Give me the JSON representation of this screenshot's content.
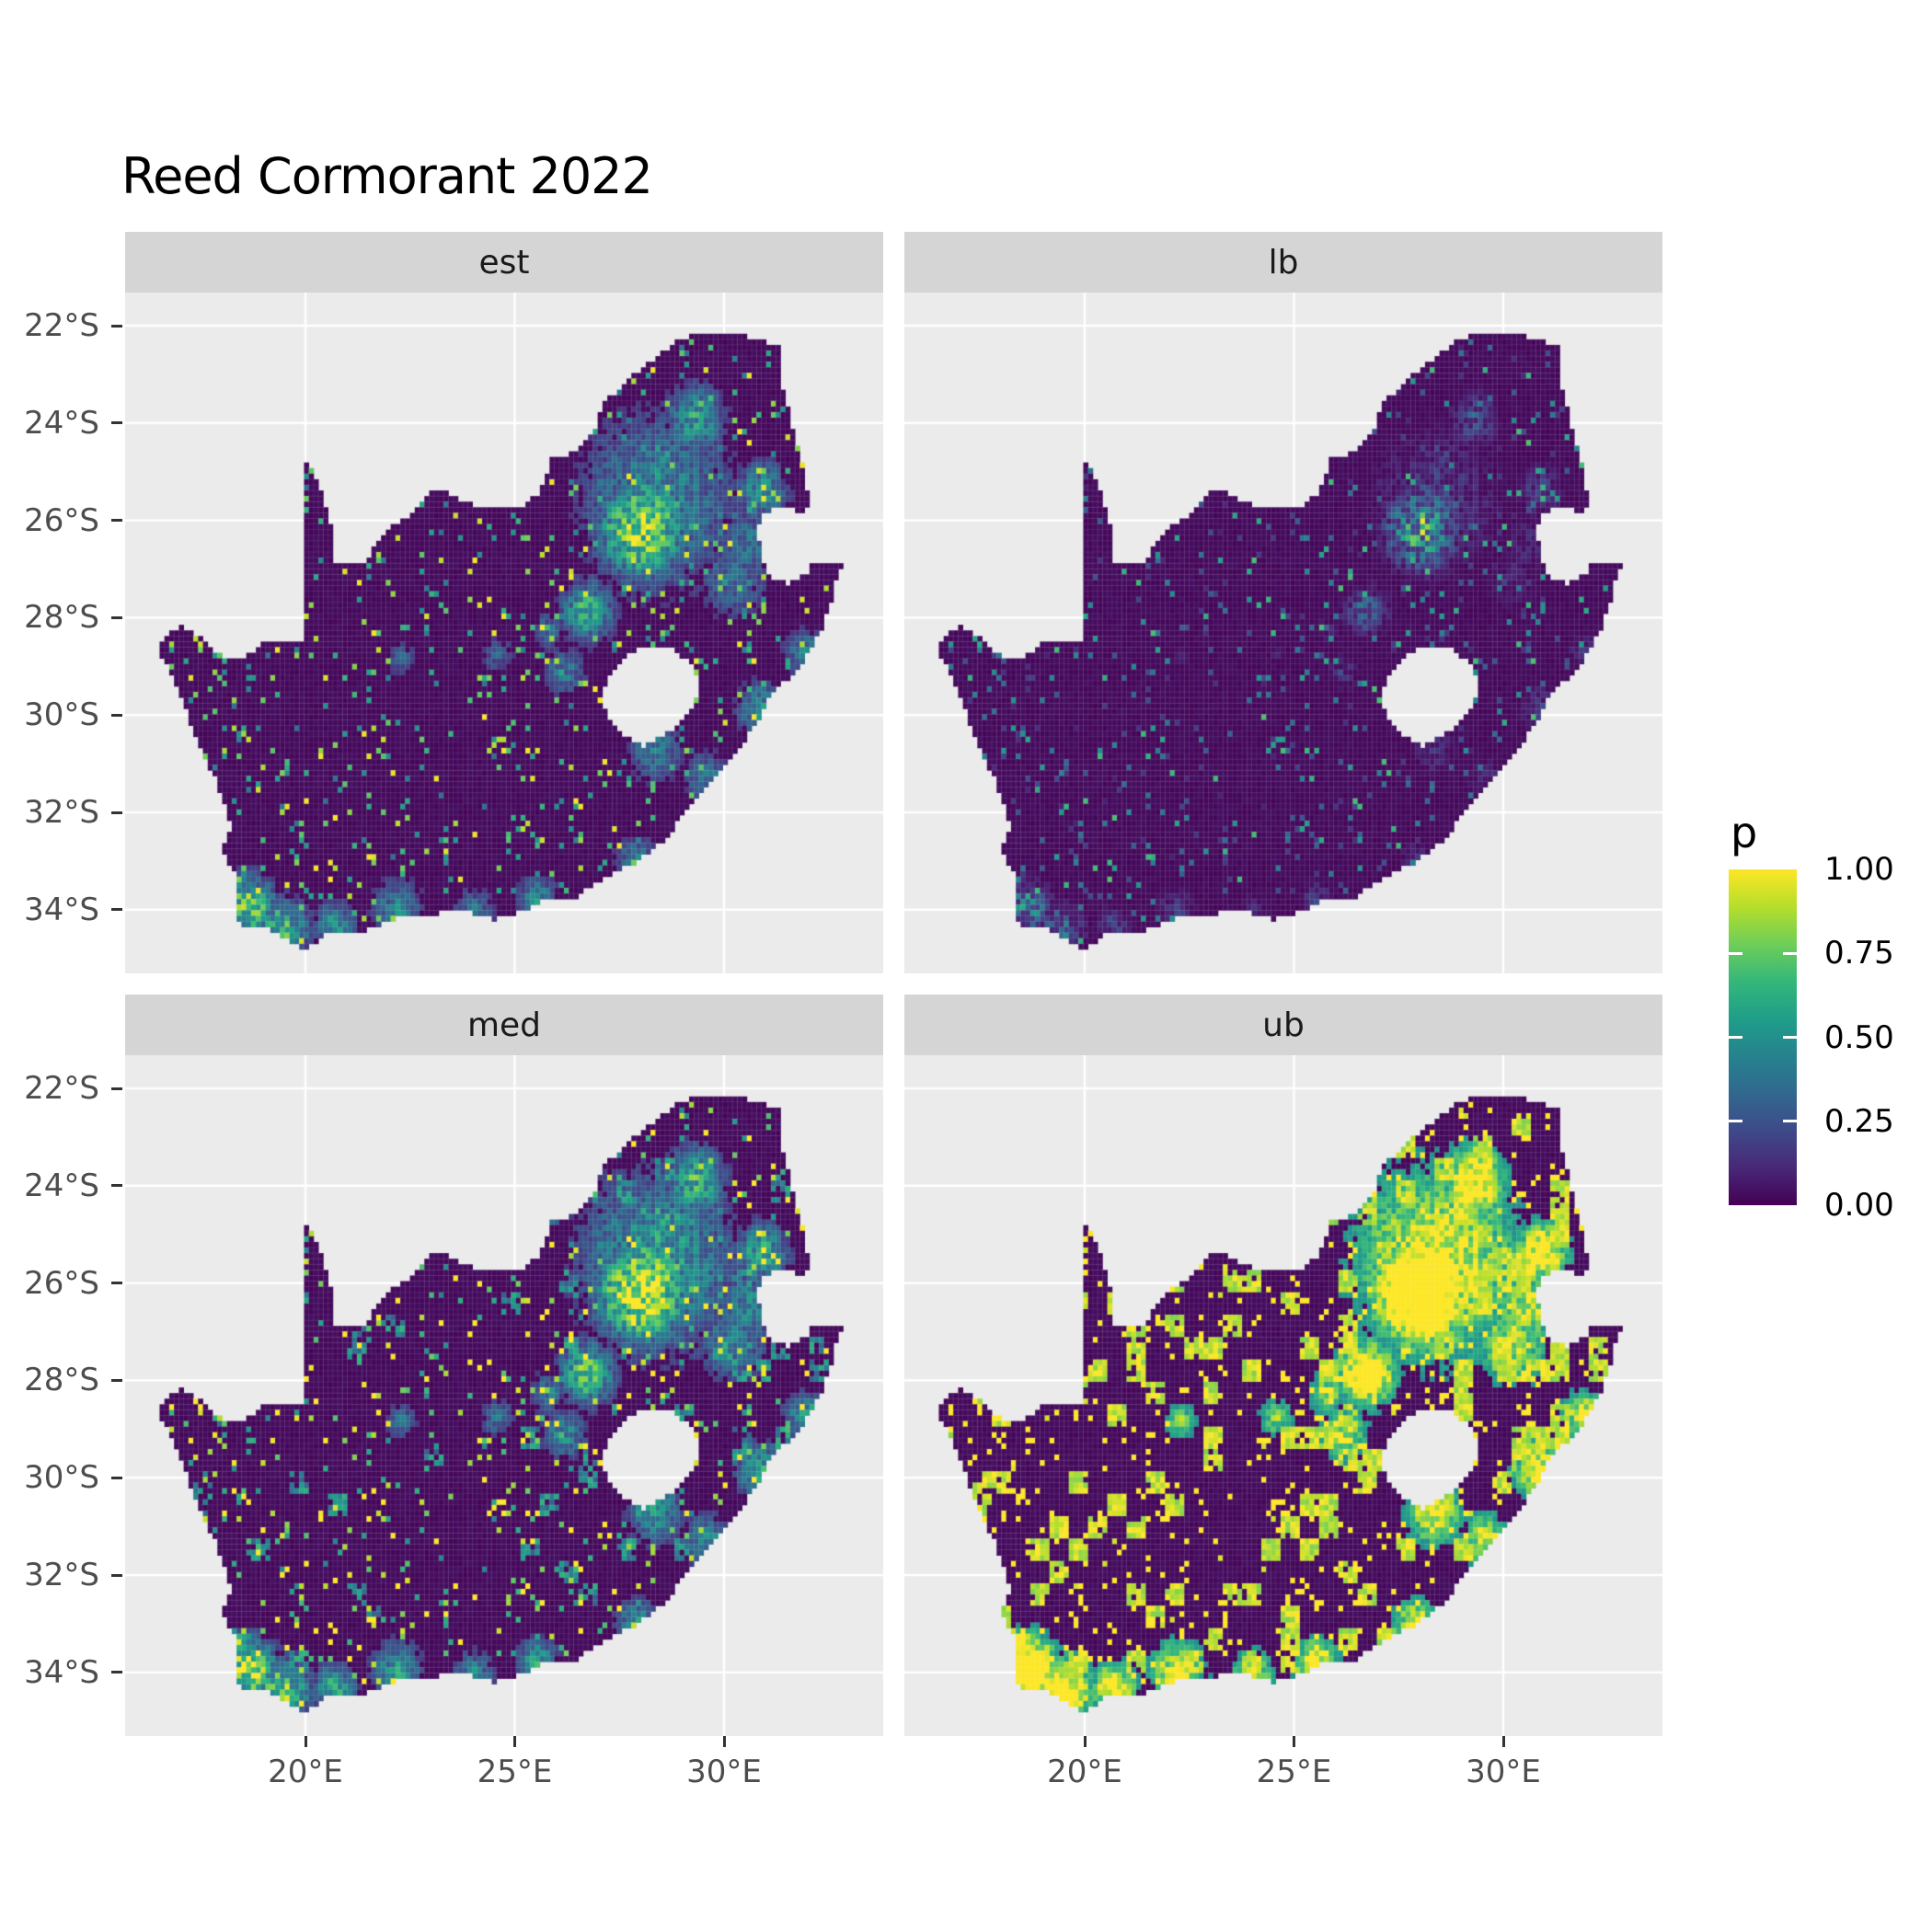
{
  "title": "Reed Cormorant 2022",
  "colors": {
    "background": "#FFFFFF",
    "panel_bg": "#EBEBEB",
    "strip_bg": "#D5D5D5",
    "gridline": "#FFFFFF",
    "axis_text": "#4D4D4D",
    "strip_text": "#1A1A1A",
    "title_text": "#000000",
    "tick_mark": "#333333",
    "cell_mesh": "rgba(255,255,255,0.13)"
  },
  "chart_data": {
    "type": "heatmap",
    "subtype": "faceted-raster-map",
    "title": "Reed Cormorant 2022",
    "region": "South Africa",
    "value_name": "p",
    "value_range": [
      0,
      1
    ],
    "facets": [
      {
        "label": "est",
        "row": 0,
        "col": 0,
        "appearance": "mostly near-zero purple; teal-green speckles; strong yellow hotspot over Gauteng; yellow along south-west and south coasts",
        "params": {
          "thresh": 0.14,
          "power": 1.0,
          "gain": 1.05,
          "offset": 0.0,
          "midPatch": false,
          "yellowPatch": false
        }
      },
      {
        "label": "lb",
        "row": 0,
        "col": 1,
        "appearance": "darkest facet; sparse blue-teal speckles; muted green-yellow only in Gauteng core",
        "params": {
          "thresh": 0.16,
          "power": 2.1,
          "gain": 0.8,
          "offset": 0.0,
          "midPatch": false,
          "yellowPatch": false
        }
      },
      {
        "label": "med",
        "row": 1,
        "col": 0,
        "appearance": "like est but slightly brighter with more teal clumps",
        "params": {
          "thresh": 0.12,
          "power": 1.0,
          "gain": 1.22,
          "offset": 0.02,
          "midPatch": true,
          "yellowPatch": false
        }
      },
      {
        "label": "ub",
        "row": 1,
        "col": 1,
        "appearance": "large saturated yellow patches over Gauteng, coasts and scattered interior blocks; rest dark purple",
        "params": {
          "thresh": 0.1,
          "power": 1.0,
          "gain": 1.7,
          "offset": 0.32,
          "midPatch": false,
          "yellowPatch": true
        }
      }
    ],
    "x": {
      "ticks": [
        {
          "lon": 20,
          "label": "20°E"
        },
        {
          "lon": 25,
          "label": "25°E"
        },
        {
          "lon": 30,
          "label": "30°E"
        }
      ]
    },
    "y": {
      "ticks": [
        {
          "lat": -22,
          "label": "22°S"
        },
        {
          "lat": -24,
          "label": "24°S"
        },
        {
          "lat": -26,
          "label": "26°S"
        },
        {
          "lat": -28,
          "label": "28°S"
        },
        {
          "lat": -30,
          "label": "30°S"
        },
        {
          "lat": -32,
          "label": "32°S"
        },
        {
          "lat": -34,
          "label": "34°S"
        }
      ]
    },
    "legend": {
      "title": "p",
      "position": "right",
      "ticks": [
        {
          "v": 1.0,
          "label": "1.00"
        },
        {
          "v": 0.75,
          "label": "0.75"
        },
        {
          "v": 0.5,
          "label": "0.50"
        },
        {
          "v": 0.25,
          "label": "0.25"
        },
        {
          "v": 0.0,
          "label": "0.00"
        }
      ]
    },
    "palette": {
      "name": "viridis",
      "stops": [
        "#440154",
        "#482878",
        "#3e4a89",
        "#31688e",
        "#26828e",
        "#1f9e89",
        "#35b779",
        "#6ece58",
        "#b5de2b",
        "#fde725"
      ]
    },
    "map": {
      "cell_deg": 0.115,
      "lon_bounds": [
        16.4,
        33.0
      ],
      "lat_bounds": [
        -34.9,
        -22.05
      ],
      "outline": [
        [
          16.45,
          -28.6
        ],
        [
          16.77,
          -28.27
        ],
        [
          17.05,
          -28.17
        ],
        [
          17.45,
          -28.4
        ],
        [
          17.95,
          -28.75
        ],
        [
          18.45,
          -28.88
        ],
        [
          19.0,
          -28.52
        ],
        [
          19.55,
          -28.48
        ],
        [
          19.98,
          -28.43
        ],
        [
          20.0,
          -24.77
        ],
        [
          20.35,
          -25.3
        ],
        [
          20.62,
          -26.12
        ],
        [
          20.7,
          -26.85
        ],
        [
          21.4,
          -26.85
        ],
        [
          22.0,
          -26.15
        ],
        [
          22.6,
          -25.82
        ],
        [
          23.05,
          -25.32
        ],
        [
          23.65,
          -25.55
        ],
        [
          24.2,
          -25.72
        ],
        [
          25.1,
          -25.74
        ],
        [
          25.6,
          -25.45
        ],
        [
          25.9,
          -24.72
        ],
        [
          26.4,
          -24.6
        ],
        [
          26.85,
          -24.25
        ],
        [
          27.15,
          -23.58
        ],
        [
          27.6,
          -23.2
        ],
        [
          28.2,
          -22.75
        ],
        [
          29.0,
          -22.25
        ],
        [
          29.45,
          -22.14
        ],
        [
          30.4,
          -22.2
        ],
        [
          31.3,
          -22.42
        ],
        [
          31.35,
          -23.1
        ],
        [
          31.55,
          -23.8
        ],
        [
          31.9,
          -24.9
        ],
        [
          32.02,
          -25.62
        ],
        [
          31.95,
          -25.93
        ],
        [
          31.6,
          -25.75
        ],
        [
          31.25,
          -25.73
        ],
        [
          30.85,
          -25.95
        ],
        [
          30.8,
          -26.35
        ],
        [
          30.95,
          -26.85
        ],
        [
          31.1,
          -27.2
        ],
        [
          31.5,
          -27.3
        ],
        [
          31.95,
          -27.12
        ],
        [
          32.12,
          -26.84
        ],
        [
          32.89,
          -26.86
        ],
        [
          32.65,
          -27.25
        ],
        [
          32.55,
          -27.7
        ],
        [
          32.35,
          -28.2
        ],
        [
          32.1,
          -28.6
        ],
        [
          31.75,
          -29.05
        ],
        [
          31.1,
          -29.6
        ],
        [
          30.75,
          -30.2
        ],
        [
          30.0,
          -31.1
        ],
        [
          29.25,
          -31.75
        ],
        [
          28.6,
          -32.55
        ],
        [
          27.95,
          -33.0
        ],
        [
          27.1,
          -33.35
        ],
        [
          26.45,
          -33.75
        ],
        [
          25.65,
          -33.8
        ],
        [
          25.3,
          -34.0
        ],
        [
          24.5,
          -34.2
        ],
        [
          23.6,
          -33.98
        ],
        [
          23.0,
          -34.1
        ],
        [
          22.2,
          -34.15
        ],
        [
          21.3,
          -34.45
        ],
        [
          20.55,
          -34.45
        ],
        [
          20.0,
          -34.83
        ],
        [
          19.6,
          -34.65
        ],
        [
          19.0,
          -34.35
        ],
        [
          18.45,
          -34.35
        ],
        [
          18.3,
          -34.0
        ],
        [
          18.35,
          -33.3
        ],
        [
          18.0,
          -32.75
        ],
        [
          18.25,
          -32.3
        ],
        [
          17.85,
          -31.3
        ],
        [
          17.35,
          -30.45
        ],
        [
          17.1,
          -29.75
        ],
        [
          16.82,
          -29.2
        ]
      ],
      "lesotho_hole": [
        [
          27.05,
          -29.62
        ],
        [
          27.42,
          -28.95
        ],
        [
          28.0,
          -28.62
        ],
        [
          28.68,
          -28.58
        ],
        [
          29.15,
          -28.88
        ],
        [
          29.45,
          -29.35
        ],
        [
          29.18,
          -29.95
        ],
        [
          28.7,
          -30.35
        ],
        [
          28.05,
          -30.65
        ],
        [
          27.5,
          -30.38
        ],
        [
          27.18,
          -30.0
        ]
      ],
      "hotspots": [
        [
          28.05,
          -26.15,
          0.75,
          1.12
        ],
        [
          28.4,
          -25.6,
          1.3,
          0.6
        ],
        [
          29.3,
          -23.9,
          0.5,
          0.7
        ],
        [
          30.9,
          -25.4,
          0.45,
          0.65
        ],
        [
          30.2,
          -27.2,
          0.6,
          0.45
        ],
        [
          26.75,
          -27.85,
          0.45,
          0.8
        ],
        [
          26.2,
          -29.1,
          0.38,
          0.5
        ],
        [
          28.35,
          -30.75,
          0.45,
          0.55
        ],
        [
          18.65,
          -33.95,
          0.45,
          1.0
        ],
        [
          19.4,
          -34.45,
          0.5,
          0.85
        ],
        [
          20.7,
          -34.35,
          0.35,
          0.7
        ],
        [
          22.2,
          -34.0,
          0.45,
          0.55
        ],
        [
          24.0,
          -34.05,
          0.35,
          0.5
        ],
        [
          25.55,
          -33.8,
          0.35,
          0.6
        ],
        [
          27.9,
          -32.95,
          0.35,
          0.5
        ],
        [
          29.6,
          -31.3,
          0.4,
          0.5
        ],
        [
          30.85,
          -29.85,
          0.4,
          0.6
        ],
        [
          31.9,
          -28.7,
          0.35,
          0.5
        ],
        [
          25.8,
          -28.25,
          0.3,
          0.45
        ],
        [
          24.6,
          -28.75,
          0.28,
          0.4
        ],
        [
          22.3,
          -28.85,
          0.25,
          0.4
        ],
        [
          30.55,
          -26.5,
          0.5,
          0.5
        ]
      ]
    }
  }
}
